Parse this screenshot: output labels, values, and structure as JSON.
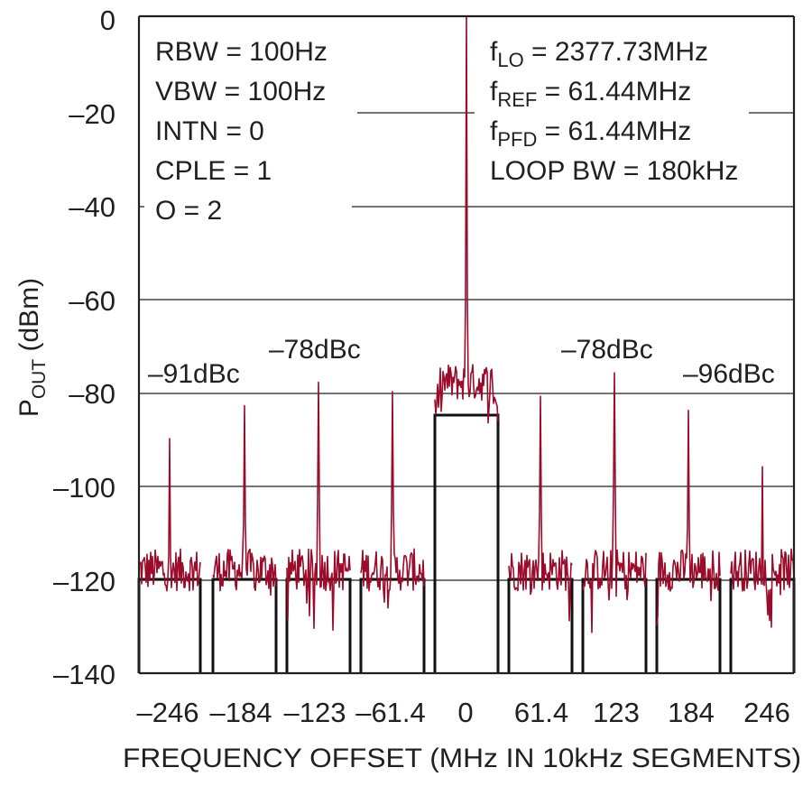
{
  "chart_data": {
    "type": "line",
    "title": "",
    "xlabel": "FREQUENCY OFFSET (MHz IN 10kHz SEGMENTS)",
    "ylabel": "P",
    "ylabel_sub": "OUT",
    "ylabel_unit": " (dBm)",
    "ylim": [
      -140,
      0
    ],
    "yticks": [
      0,
      -20,
      -40,
      -60,
      -80,
      -100,
      -120,
      -140
    ],
    "ytick_labels": [
      "0",
      "–20",
      "–40",
      "–60",
      "–80",
      "–100",
      "–120",
      "–140"
    ],
    "xtick_labels": [
      "–246",
      "–184",
      "–123",
      "–61.4",
      "0",
      "61.4",
      "123",
      "184",
      "246"
    ],
    "grid": true,
    "trace_color": "#9b0b2a",
    "segment_color": "#111111",
    "segment_floor_dBm": [
      -120,
      -120,
      -120,
      -120,
      -85,
      -120,
      -120,
      -120,
      -120
    ],
    "noise_floor_dBm": -118,
    "close_in_plateau_dBm": -78,
    "spurs": [
      {
        "segment": 0,
        "level": -90
      },
      {
        "segment": 1,
        "level": -83
      },
      {
        "segment": 2,
        "level": -78
      },
      {
        "segment": 3,
        "level": -80
      },
      {
        "segment": 4,
        "level": 0
      },
      {
        "segment": 5,
        "level": -81
      },
      {
        "segment": 6,
        "level": -76
      },
      {
        "segment": 7,
        "level": -84
      },
      {
        "segment": 8,
        "level": -96
      }
    ],
    "settings_left": [
      "RBW = 100Hz",
      "VBW = 100Hz",
      "INTN = 0",
      "CPLE = 1",
      "O = 2"
    ],
    "settings_right": [
      {
        "base": "f",
        "sub": "LO",
        "rest": " = 2377.73MHz"
      },
      {
        "base": "f",
        "sub": "REF",
        "rest": " = 61.44MHz"
      },
      {
        "base": "f",
        "sub": "PFD",
        "rest": " = 61.44MHz"
      },
      {
        "base": "",
        "sub": "",
        "rest": "LOOP BW = 180kHz"
      }
    ],
    "spur_labels": [
      "–91dBc",
      "–78dBc",
      "–78dBc",
      "–96dBc"
    ]
  }
}
